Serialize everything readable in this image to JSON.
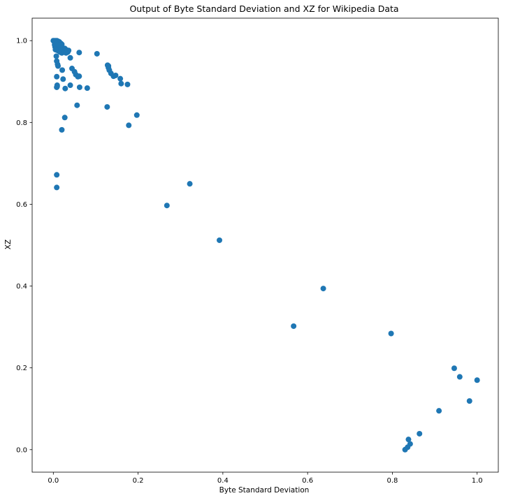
{
  "chart_data": {
    "type": "scatter",
    "title": "Output of Byte Standard Deviation and XZ for Wikipedia Data",
    "xlabel": "Byte Standard Deviation",
    "ylabel": "XZ",
    "xlim": [
      -0.05,
      1.05
    ],
    "ylim": [
      -0.055,
      1.055
    ],
    "xticks": [
      0.0,
      0.2,
      0.4,
      0.6,
      0.8,
      1.0
    ],
    "xtick_labels": [
      "0.0",
      "0.2",
      "0.4",
      "0.6",
      "0.8",
      "1.0"
    ],
    "yticks": [
      0.0,
      0.2,
      0.4,
      0.6,
      0.8,
      1.0
    ],
    "ytick_labels": [
      "0.0",
      "0.2",
      "0.4",
      "0.6",
      "0.8",
      "1.0"
    ],
    "grid": false,
    "marker_color": "#1f77b4",
    "series": [
      {
        "x": [
          0.0,
          0.002,
          0.004,
          0.006,
          0.008,
          0.01,
          0.012,
          0.014,
          0.016,
          0.018,
          0.02,
          0.003,
          0.005,
          0.007,
          0.009,
          0.011,
          0.013,
          0.015,
          0.017,
          0.019,
          0.021,
          0.023,
          0.025,
          0.027,
          0.004,
          0.008,
          0.012,
          0.016,
          0.02,
          0.024,
          0.028,
          0.03,
          0.032,
          0.034,
          0.036,
          0.006,
          0.01,
          0.014,
          0.018,
          0.022,
          0.026,
          0.03,
          0.005,
          0.009,
          0.013,
          0.017,
          0.003,
          0.007,
          0.011,
          0.015,
          0.019,
          0.005,
          0.007,
          0.008,
          0.01,
          0.011,
          0.008,
          0.04,
          0.009,
          0.021,
          0.044,
          0.05,
          0.053,
          0.058,
          0.061,
          0.023,
          0.008,
          0.009,
          0.028,
          0.04,
          0.062,
          0.08,
          0.027,
          0.056,
          0.02,
          0.008,
          0.008,
          0.061,
          0.103,
          0.128,
          0.13,
          0.132,
          0.13,
          0.136,
          0.142,
          0.147,
          0.158,
          0.16,
          0.175,
          0.127,
          0.197,
          0.178,
          0.268,
          0.322,
          0.392,
          0.567,
          0.637,
          0.797,
          0.946,
          0.959,
          1.0,
          0.982,
          0.91,
          0.864,
          0.838,
          0.842,
          0.83,
          0.836
        ],
        "y": [
          1.0,
          0.998,
          1.0,
          0.995,
          1.0,
          0.999,
          0.998,
          0.997,
          0.994,
          0.993,
          0.991,
          0.99,
          0.987,
          0.992,
          0.989,
          0.988,
          0.985,
          0.983,
          0.986,
          0.98,
          0.979,
          0.982,
          0.978,
          0.981,
          0.985,
          0.977,
          0.975,
          0.972,
          0.97,
          0.974,
          0.976,
          0.978,
          0.975,
          0.972,
          0.976,
          0.982,
          0.98,
          0.983,
          0.978,
          0.979,
          0.975,
          0.97,
          0.991,
          0.989,
          0.987,
          0.984,
          0.996,
          0.993,
          0.991,
          0.99,
          0.988,
          0.978,
          0.962,
          0.95,
          0.942,
          0.938,
          0.912,
          0.958,
          0.888,
          0.928,
          0.932,
          0.924,
          0.917,
          0.912,
          0.913,
          0.906,
          0.886,
          0.891,
          0.883,
          0.891,
          0.886,
          0.884,
          0.812,
          0.842,
          0.782,
          0.672,
          0.641,
          0.971,
          0.968,
          0.94,
          0.934,
          0.928,
          0.938,
          0.92,
          0.913,
          0.915,
          0.907,
          0.895,
          0.893,
          0.838,
          0.818,
          0.793,
          0.597,
          0.65,
          0.512,
          0.302,
          0.394,
          0.284,
          0.199,
          0.178,
          0.17,
          0.119,
          0.095,
          0.039,
          0.025,
          0.014,
          0.0,
          0.006
        ]
      }
    ]
  }
}
